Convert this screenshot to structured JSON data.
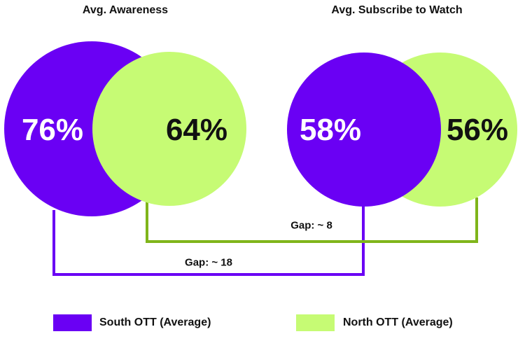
{
  "colors": {
    "south": "#6a00f4",
    "north": "#c6fb74",
    "north_line": "#7fb51a",
    "text": "#111111"
  },
  "groups": [
    {
      "title": "Avg. Awareness",
      "south_value": "76%",
      "north_value": "64%"
    },
    {
      "title": "Avg. Subscribe to Watch",
      "south_value": "58%",
      "north_value": "56%"
    }
  ],
  "gaps": {
    "north": "Gap: ~ 8",
    "south": "Gap: ~ 18"
  },
  "legend": [
    {
      "label": "South OTT (Average)",
      "color": "#6a00f4"
    },
    {
      "label": "North OTT (Average)",
      "color": "#c6fb74"
    }
  ]
}
